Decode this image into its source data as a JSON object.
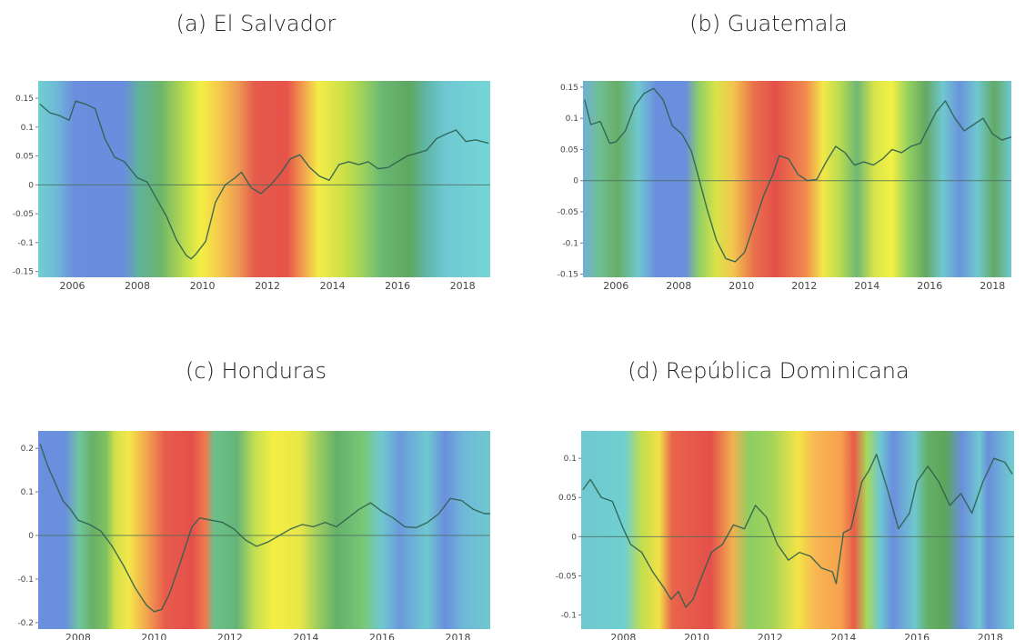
{
  "chart_data": [
    {
      "type": "line",
      "title": "(a) El Salvador",
      "xlim": [
        2004.95,
        2018.85
      ],
      "ylim": [
        -0.16,
        0.18
      ],
      "yticks": [
        0.15,
        0.1,
        0.05,
        0,
        -0.05,
        -0.1,
        -0.15
      ],
      "ytick_labels": [
        "0.15",
        "0.1",
        "0.05",
        "0",
        "-0.05",
        "-0.1",
        "-0.15"
      ],
      "xticks": [
        2006,
        2008,
        2010,
        2012,
        2014,
        2016,
        2018
      ],
      "series": [
        {
          "x": [
            2005.0,
            2005.3,
            2005.6,
            2005.9,
            2006.1,
            2006.4,
            2006.7,
            2007.0,
            2007.3,
            2007.6,
            2008.0,
            2008.3,
            2008.6,
            2008.9,
            2009.2,
            2009.5,
            2009.65,
            2009.8,
            2010.1,
            2010.4,
            2010.7,
            2011.0,
            2011.2,
            2011.5,
            2011.8,
            2012.1,
            2012.4,
            2012.7,
            2013.0,
            2013.3,
            2013.6,
            2013.9,
            2014.2,
            2014.5,
            2014.8,
            2015.1,
            2015.4,
            2015.7,
            2016.0,
            2016.3,
            2016.6,
            2016.9,
            2017.2,
            2017.5,
            2017.8,
            2018.1,
            2018.4,
            2018.8
          ],
          "y": [
            0.14,
            0.125,
            0.12,
            0.112,
            0.145,
            0.14,
            0.132,
            0.08,
            0.048,
            0.04,
            0.012,
            0.005,
            -0.025,
            -0.055,
            -0.095,
            -0.122,
            -0.128,
            -0.12,
            -0.098,
            -0.03,
            0.0,
            0.012,
            0.022,
            -0.005,
            -0.015,
            0.0,
            0.02,
            0.045,
            0.052,
            0.03,
            0.015,
            0.008,
            0.035,
            0.04,
            0.035,
            0.04,
            0.028,
            0.03,
            0.04,
            0.05,
            0.055,
            0.06,
            0.08,
            0.088,
            0.095,
            0.075,
            0.078,
            0.072
          ]
        }
      ]
    },
    {
      "type": "line",
      "title": "(b) Guatemala",
      "xlim": [
        2004.95,
        2018.6
      ],
      "ylim": [
        -0.155,
        0.16
      ],
      "yticks": [
        0.15,
        0.1,
        0.05,
        0,
        -0.05,
        -0.1,
        -0.15
      ],
      "ytick_labels": [
        "0.15",
        "0.1",
        "0.05",
        "0",
        "-0.05",
        "-0.1",
        "-0.15"
      ],
      "xticks": [
        2006,
        2008,
        2010,
        2012,
        2014,
        2016,
        2018
      ],
      "series": [
        {
          "x": [
            2005.0,
            2005.2,
            2005.5,
            2005.8,
            2006.0,
            2006.3,
            2006.6,
            2006.9,
            2007.2,
            2007.5,
            2007.8,
            2008.1,
            2008.4,
            2008.6,
            2008.9,
            2009.2,
            2009.5,
            2009.8,
            2010.1,
            2010.4,
            2010.7,
            2011.0,
            2011.2,
            2011.5,
            2011.8,
            2012.1,
            2012.4,
            2012.7,
            2013.0,
            2013.3,
            2013.6,
            2013.9,
            2014.2,
            2014.5,
            2014.8,
            2015.1,
            2015.4,
            2015.7,
            2016.0,
            2016.2,
            2016.5,
            2016.8,
            2017.1,
            2017.4,
            2017.7,
            2018.0,
            2018.3,
            2018.6
          ],
          "y": [
            0.13,
            0.09,
            0.095,
            0.06,
            0.062,
            0.08,
            0.12,
            0.14,
            0.148,
            0.13,
            0.088,
            0.075,
            0.048,
            0.012,
            -0.045,
            -0.095,
            -0.125,
            -0.13,
            -0.115,
            -0.07,
            -0.025,
            0.01,
            0.04,
            0.035,
            0.01,
            0.0,
            0.002,
            0.03,
            0.055,
            0.045,
            0.025,
            0.03,
            0.025,
            0.035,
            0.05,
            0.045,
            0.055,
            0.06,
            0.09,
            0.11,
            0.128,
            0.1,
            0.08,
            0.09,
            0.1,
            0.075,
            0.065,
            0.07
          ]
        }
      ]
    },
    {
      "type": "line",
      "title": "(c) Honduras",
      "xlim": [
        2006.95,
        2018.85
      ],
      "ylim": [
        -0.215,
        0.24
      ],
      "yticks": [
        0.2,
        0.1,
        0,
        -0.1,
        -0.2
      ],
      "ytick_labels": [
        "0.2",
        "0.1",
        "0",
        "-0.1",
        "-0.2"
      ],
      "xticks": [
        2008,
        2010,
        2012,
        2014,
        2016,
        2018
      ],
      "series": [
        {
          "x": [
            2007.0,
            2007.2,
            2007.4,
            2007.6,
            2007.8,
            2008.0,
            2008.3,
            2008.6,
            2008.9,
            2009.2,
            2009.5,
            2009.8,
            2010.0,
            2010.2,
            2010.4,
            2010.7,
            2011.0,
            2011.2,
            2011.5,
            2011.8,
            2012.1,
            2012.4,
            2012.7,
            2013.0,
            2013.3,
            2013.6,
            2013.9,
            2014.2,
            2014.5,
            2014.8,
            2015.1,
            2015.4,
            2015.7,
            2016.0,
            2016.3,
            2016.6,
            2016.9,
            2017.2,
            2017.5,
            2017.8,
            2018.1,
            2018.4,
            2018.7,
            2018.85
          ],
          "y": [
            0.21,
            0.16,
            0.12,
            0.08,
            0.06,
            0.035,
            0.025,
            0.01,
            -0.025,
            -0.07,
            -0.12,
            -0.16,
            -0.175,
            -0.17,
            -0.135,
            -0.06,
            0.02,
            0.04,
            0.035,
            0.03,
            0.015,
            -0.01,
            -0.025,
            -0.015,
            0.0,
            0.015,
            0.025,
            0.02,
            0.03,
            0.02,
            0.04,
            0.06,
            0.075,
            0.055,
            0.04,
            0.02,
            0.018,
            0.03,
            0.05,
            0.085,
            0.08,
            0.06,
            0.05,
            0.05
          ]
        }
      ]
    },
    {
      "type": "line",
      "title": "(d) República Dominicana",
      "xlim": [
        2006.85,
        2018.65
      ],
      "ylim": [
        -0.118,
        0.135
      ],
      "yticks": [
        0.1,
        0.05,
        0,
        -0.05,
        -0.1
      ],
      "ytick_labels": [
        "0.1",
        "0.05",
        "0",
        "-0.05",
        "-0.1"
      ],
      "xticks": [
        2008,
        2010,
        2012,
        2014,
        2016,
        2018
      ],
      "series": [
        {
          "x": [
            2006.9,
            2007.1,
            2007.4,
            2007.7,
            2008.0,
            2008.2,
            2008.5,
            2008.8,
            2009.1,
            2009.3,
            2009.5,
            2009.7,
            2009.9,
            2010.1,
            2010.4,
            2010.7,
            2011.0,
            2011.3,
            2011.6,
            2011.9,
            2012.2,
            2012.5,
            2012.8,
            2013.1,
            2013.4,
            2013.7,
            2013.8,
            2014.0,
            2014.2,
            2014.5,
            2014.7,
            2014.9,
            2015.2,
            2015.5,
            2015.8,
            2016.0,
            2016.3,
            2016.6,
            2016.9,
            2017.2,
            2017.5,
            2017.8,
            2018.1,
            2018.4,
            2018.6
          ],
          "y": [
            0.06,
            0.073,
            0.05,
            0.045,
            0.01,
            -0.01,
            -0.02,
            -0.045,
            -0.065,
            -0.08,
            -0.07,
            -0.09,
            -0.08,
            -0.055,
            -0.02,
            -0.01,
            0.015,
            0.01,
            0.04,
            0.025,
            -0.01,
            -0.03,
            -0.02,
            -0.025,
            -0.04,
            -0.045,
            -0.06,
            0.005,
            0.01,
            0.07,
            0.085,
            0.105,
            0.06,
            0.01,
            0.03,
            0.07,
            0.09,
            0.07,
            0.04,
            0.055,
            0.03,
            0.07,
            0.1,
            0.095,
            0.08
          ]
        }
      ]
    }
  ]
}
